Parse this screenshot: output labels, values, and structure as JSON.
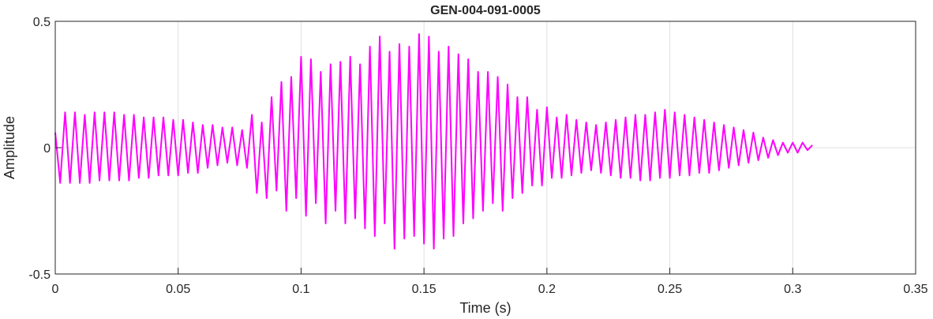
{
  "chart_data": {
    "type": "line",
    "title": "GEN-004-091-0005",
    "xlabel": "Time (s)",
    "ylabel": "Amplitude",
    "color": "#ff00ff",
    "grid": true,
    "xlim": [
      0,
      0.35
    ],
    "xticks": [
      0,
      0.05,
      0.1,
      0.15,
      0.2,
      0.25,
      0.3,
      0.35
    ],
    "ylim": [
      -0.5,
      0.5
    ],
    "yticks": [
      -0.5,
      0,
      0.5
    ],
    "x": [
      0,
      0.002,
      0.004,
      0.006,
      0.008,
      0.01,
      0.012,
      0.014,
      0.016,
      0.018,
      0.02,
      0.022,
      0.024,
      0.026,
      0.028,
      0.03,
      0.032,
      0.034,
      0.036,
      0.038,
      0.04,
      0.042,
      0.044,
      0.046,
      0.048,
      0.05,
      0.052,
      0.054,
      0.056,
      0.058,
      0.06,
      0.062,
      0.064,
      0.066,
      0.068,
      0.07,
      0.072,
      0.074,
      0.076,
      0.078,
      0.08,
      0.082,
      0.084,
      0.086,
      0.088,
      0.09,
      0.092,
      0.094,
      0.096,
      0.098,
      0.1,
      0.102,
      0.104,
      0.106,
      0.108,
      0.11,
      0.112,
      0.114,
      0.116,
      0.118,
      0.12,
      0.122,
      0.124,
      0.126,
      0.128,
      0.13,
      0.132,
      0.134,
      0.136,
      0.138,
      0.14,
      0.142,
      0.144,
      0.146,
      0.148,
      0.15,
      0.152,
      0.154,
      0.156,
      0.158,
      0.16,
      0.162,
      0.164,
      0.166,
      0.168,
      0.17,
      0.172,
      0.174,
      0.176,
      0.178,
      0.18,
      0.182,
      0.184,
      0.186,
      0.188,
      0.19,
      0.192,
      0.194,
      0.196,
      0.198,
      0.2,
      0.202,
      0.204,
      0.206,
      0.208,
      0.21,
      0.212,
      0.214,
      0.216,
      0.218,
      0.22,
      0.222,
      0.224,
      0.226,
      0.228,
      0.23,
      0.232,
      0.234,
      0.236,
      0.238,
      0.24,
      0.242,
      0.244,
      0.246,
      0.248,
      0.25,
      0.252,
      0.254,
      0.256,
      0.258,
      0.26,
      0.262,
      0.264,
      0.266,
      0.268,
      0.27,
      0.272,
      0.274,
      0.276,
      0.278,
      0.28,
      0.282,
      0.284,
      0.286,
      0.288,
      0.29,
      0.292,
      0.294,
      0.296,
      0.298,
      0.3,
      0.302,
      0.304,
      0.306,
      0.308
    ],
    "values": [
      0.06,
      -0.14,
      0.14,
      -0.14,
      0.14,
      -0.14,
      0.13,
      -0.14,
      0.14,
      -0.13,
      0.14,
      -0.13,
      0.14,
      -0.13,
      0.13,
      -0.13,
      0.13,
      -0.12,
      0.12,
      -0.12,
      0.12,
      -0.11,
      0.12,
      -0.11,
      0.11,
      -0.11,
      0.11,
      -0.1,
      0.1,
      -0.1,
      0.09,
      -0.08,
      0.09,
      -0.07,
      0.08,
      -0.06,
      0.08,
      -0.07,
      0.07,
      -0.08,
      0.13,
      -0.18,
      0.1,
      -0.2,
      0.2,
      -0.17,
      0.26,
      -0.25,
      0.28,
      -0.2,
      0.36,
      -0.27,
      0.35,
      -0.22,
      0.3,
      -0.3,
      0.33,
      -0.25,
      0.34,
      -0.3,
      0.36,
      -0.28,
      0.33,
      -0.32,
      0.4,
      -0.35,
      0.44,
      -0.3,
      0.38,
      -0.4,
      0.41,
      -0.36,
      0.4,
      -0.35,
      0.45,
      -0.38,
      0.44,
      -0.4,
      0.38,
      -0.36,
      0.4,
      -0.35,
      0.37,
      -0.3,
      0.35,
      -0.28,
      0.3,
      -0.25,
      0.3,
      -0.22,
      0.28,
      -0.25,
      0.25,
      -0.2,
      0.2,
      -0.18,
      0.2,
      -0.15,
      0.15,
      -0.15,
      0.16,
      -0.12,
      0.12,
      -0.12,
      0.13,
      -0.11,
      0.11,
      -0.1,
      0.1,
      -0.09,
      0.09,
      -0.1,
      0.1,
      -0.11,
      0.11,
      -0.12,
      0.12,
      -0.12,
      0.13,
      -0.13,
      0.13,
      -0.13,
      0.14,
      -0.12,
      0.15,
      -0.12,
      0.14,
      -0.11,
      0.13,
      -0.11,
      0.12,
      -0.1,
      0.11,
      -0.1,
      0.1,
      -0.09,
      0.09,
      -0.08,
      0.08,
      -0.07,
      0.07,
      -0.06,
      0.06,
      -0.05,
      0.04,
      -0.04,
      0.03,
      -0.03,
      0.02,
      -0.02,
      0.02,
      -0.02,
      0.02,
      -0.01,
      0.01
    ]
  }
}
